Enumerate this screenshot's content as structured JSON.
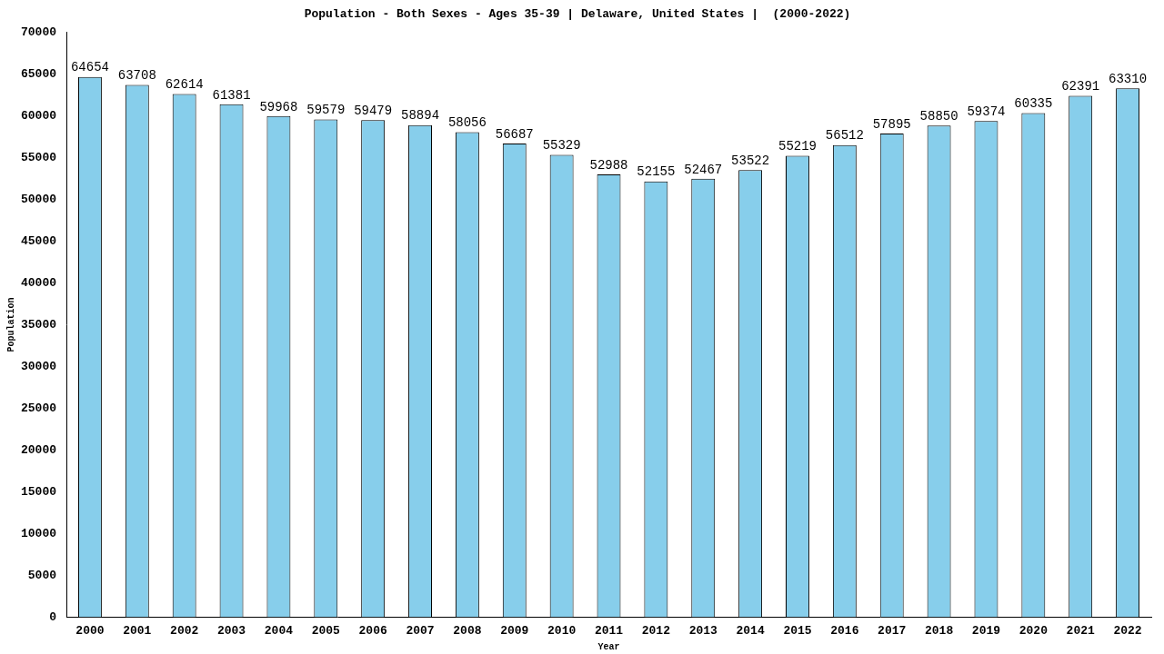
{
  "chart_data": {
    "type": "bar",
    "title": "Population - Both Sexes - Ages 35-39 | Delaware, United States |  (2000-2022)",
    "x_label": "Year",
    "y_label": "Population",
    "categories": [
      "2000",
      "2001",
      "2002",
      "2003",
      "2004",
      "2005",
      "2006",
      "2007",
      "2008",
      "2009",
      "2010",
      "2011",
      "2012",
      "2013",
      "2014",
      "2015",
      "2016",
      "2017",
      "2018",
      "2019",
      "2020",
      "2021",
      "2022"
    ],
    "values": [
      64654,
      63708,
      62614,
      61381,
      59968,
      59579,
      59479,
      58894,
      58056,
      56687,
      55329,
      52988,
      52155,
      52467,
      53522,
      55219,
      56512,
      57895,
      58850,
      59374,
      60335,
      62391,
      63310
    ],
    "color": "#87ceeb",
    "ylim": [
      0,
      70000
    ],
    "yticks": [
      0,
      5000,
      10000,
      15000,
      20000,
      25000,
      30000,
      35000,
      40000,
      45000,
      50000,
      55000,
      60000,
      65000,
      70000
    ],
    "grid": false,
    "data_labels": true
  }
}
